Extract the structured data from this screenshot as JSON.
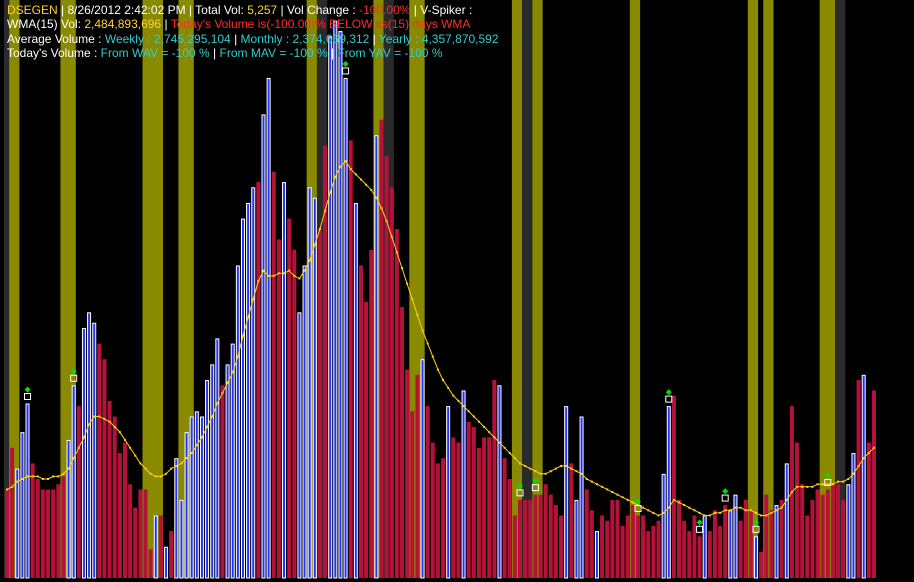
{
  "header": {
    "symbol": "DSEGEN",
    "sep": " | ",
    "datetime": "8/26/2012 2:42:02 PM",
    "total_vol_label": "Total Vol: ",
    "total_vol_value": "5,257",
    "vol_change_label": "Vol Change : ",
    "vol_change_value": "-100.00%",
    "vspiker": "V-Spiker :",
    "wma_label": "WMA(15) Vol: ",
    "wma_value": "2,484,893,696",
    "wma_sep": "  |  ",
    "below_text": "Today's Volume is(-100.00)% BELOW its(15) days WMA",
    "avg_label": "Average Volume :",
    "weekly_label": " Weekly : ",
    "weekly_value": "2,745,295,104",
    "monthly_label": " Monthly : ",
    "monthly_value": "2,374,669,312",
    "yearly_label": " Yearly : ",
    "yearly_value": "4,357,870,592",
    "today_label": "Today's Volume :",
    "from_wav": " From WAV = -100 % ",
    "from_mav": " From MAV = -100 % ",
    "from_yav": " From YAV = -100 % "
  },
  "chart_data": {
    "type": "bar",
    "description_series": "volume bars (blue = up, crimson = down) with yellow weighted moving average line and olive shaded signal bands",
    "colors": {
      "up": "#2233ff",
      "down": "#b5123a",
      "wma": "#ffd21a",
      "band": "#8a8a00",
      "dark_band": "#2a2a2a",
      "marker_green": "#00e000",
      "background": "#000000"
    },
    "ylim": [
      0,
      11000000000
    ],
    "values": [
      1700000000,
      2500000000,
      2100000000,
      2800000000,
      3350000000,
      2200000000,
      1900000000,
      1700000000,
      1700000000,
      1700000000,
      1800000000,
      1950000000,
      2650000000,
      3700000000,
      3300000000,
      4800000000,
      5100000000,
      4900000000,
      4500000000,
      4200000000,
      3400000000,
      3100000000,
      2400000000,
      2600000000,
      1800000000,
      1350000000,
      1700000000,
      1700000000,
      550000000,
      1200000000,
      1200000000,
      600000000,
      900000000,
      2300000000,
      1500000000,
      2800000000,
      3100000000,
      3200000000,
      3100000000,
      3800000000,
      4100000000,
      4600000000,
      3700000000,
      4100000000,
      4500000000,
      6000000000,
      6900000000,
      7200000000,
      7500000000,
      7600000000,
      8900000000,
      9600000000,
      7800000000,
      6500000000,
      7600000000,
      6900000000,
      6300000000,
      5100000000,
      6000000000,
      7500000000,
      7300000000,
      6700000000,
      8300000000,
      10400000000,
      10700000000,
      10500000000,
      9600000000,
      8400000000,
      7200000000,
      6000000000,
      5300000000,
      6300000000,
      8500000000,
      8800000000,
      8100000000,
      7500000000,
      6700000000,
      5200000000,
      4000000000,
      3200000000,
      3900000000,
      4200000000,
      3300000000,
      2600000000,
      2200000000,
      2300000000,
      3300000000,
      2700000000,
      2600000000,
      3600000000,
      3000000000,
      2900000000,
      2500000000,
      2700000000,
      2700000000,
      3800000000,
      3700000000,
      2300000000,
      1900000000,
      1200000000,
      1500000000,
      1500000000,
      1500000000,
      1600000000,
      1600000000,
      1800000000,
      1600000000,
      1400000000,
      1200000000,
      3300000000,
      2200000000,
      1500000000,
      3100000000,
      1700000000,
      1300000000,
      900000000,
      1200000000,
      1100000000,
      1500000000,
      1500000000,
      1000000000,
      1200000000,
      1400000000,
      1200000000,
      1200000000,
      900000000,
      1000000000,
      1100000000,
      2000000000,
      3300000000,
      3500000000,
      1500000000,
      1100000000,
      900000000,
      1200000000,
      800000000,
      1200000000,
      900000000,
      1300000000,
      1000000000,
      1400000000,
      1300000000,
      1600000000,
      1100000000,
      1500000000,
      1300000000,
      800000000,
      500000000,
      1600000000,
      1300000000,
      1400000000,
      1500000000,
      2200000000,
      3300000000,
      2600000000,
      1800000000,
      1200000000,
      1500000000,
      1700000000,
      1600000000,
      1700000000,
      1800000000,
      1800000000,
      1500000000,
      1800000000,
      2400000000,
      3800000000,
      3900000000,
      2600000000,
      3600000000
    ],
    "up": [
      0,
      0,
      1,
      1,
      1,
      0,
      0,
      0,
      0,
      0,
      0,
      0,
      1,
      1,
      0,
      1,
      1,
      1,
      0,
      0,
      0,
      0,
      0,
      0,
      0,
      0,
      0,
      0,
      0,
      1,
      0,
      1,
      0,
      1,
      1,
      1,
      1,
      1,
      1,
      1,
      1,
      1,
      0,
      1,
      1,
      1,
      1,
      1,
      1,
      0,
      1,
      1,
      0,
      0,
      1,
      0,
      0,
      1,
      1,
      1,
      1,
      0,
      0,
      1,
      1,
      1,
      1,
      0,
      1,
      0,
      0,
      0,
      1,
      0,
      0,
      0,
      0,
      0,
      0,
      0,
      0,
      1,
      0,
      0,
      0,
      0,
      1,
      0,
      0,
      1,
      0,
      0,
      0,
      0,
      0,
      0,
      1,
      0,
      0,
      0,
      0,
      0,
      0,
      0,
      0,
      0,
      0,
      0,
      0,
      1,
      0,
      1,
      1,
      0,
      0,
      1,
      0,
      0,
      0,
      0,
      0,
      0,
      0,
      0,
      0,
      0,
      0,
      0,
      1,
      1,
      0,
      0,
      0,
      0,
      0,
      0,
      1,
      0,
      0,
      0,
      0,
      1,
      1,
      0,
      0,
      0,
      1,
      0,
      0,
      0,
      1,
      0,
      1,
      0,
      0,
      0,
      0,
      0,
      0,
      0,
      0,
      0,
      0,
      0,
      1,
      1,
      0,
      1
    ],
    "wma": [
      1700000000,
      1750000000,
      1850000000,
      1900000000,
      1950000000,
      1950000000,
      1950000000,
      1900000000,
      1900000000,
      1950000000,
      1950000000,
      2000000000,
      2100000000,
      2300000000,
      2500000000,
      2700000000,
      2950000000,
      3100000000,
      3100000000,
      3050000000,
      3000000000,
      2900000000,
      2800000000,
      2650000000,
      2500000000,
      2350000000,
      2200000000,
      2100000000,
      2000000000,
      1950000000,
      1950000000,
      2000000000,
      2100000000,
      2150000000,
      2200000000,
      2300000000,
      2400000000,
      2550000000,
      2700000000,
      2900000000,
      3100000000,
      3350000000,
      3550000000,
      3750000000,
      3950000000,
      4250000000,
      4650000000,
      5000000000,
      5350000000,
      5700000000,
      5900000000,
      5800000000,
      5800000000,
      5850000000,
      5850000000,
      5900000000,
      5800000000,
      5750000000,
      5900000000,
      6100000000,
      6400000000,
      6700000000,
      7050000000,
      7400000000,
      7700000000,
      7900000000,
      8000000000,
      7850000000,
      7750000000,
      7650000000,
      7550000000,
      7450000000,
      7300000000,
      7100000000,
      6850000000,
      6550000000,
      6250000000,
      5950000000,
      5650000000,
      5350000000,
      5050000000,
      4750000000,
      4500000000,
      4250000000,
      4000000000,
      3800000000,
      3650000000,
      3500000000,
      3400000000,
      3300000000,
      3200000000,
      3100000000,
      3000000000,
      2900000000,
      2800000000,
      2700000000,
      2600000000,
      2500000000,
      2400000000,
      2300000000,
      2200000000,
      2150000000,
      2100000000,
      2050000000,
      2000000000,
      2000000000,
      2050000000,
      2100000000,
      2150000000,
      2150000000,
      2100000000,
      2050000000,
      2000000000,
      1900000000,
      1850000000,
      1800000000,
      1750000000,
      1700000000,
      1650000000,
      1600000000,
      1550000000,
      1500000000,
      1450000000,
      1400000000,
      1350000000,
      1300000000,
      1250000000,
      1200000000,
      1250000000,
      1350000000,
      1500000000,
      1450000000,
      1400000000,
      1350000000,
      1300000000,
      1250000000,
      1200000000,
      1200000000,
      1250000000,
      1250000000,
      1300000000,
      1300000000,
      1350000000,
      1350000000,
      1300000000,
      1300000000,
      1250000000,
      1200000000,
      1200000000,
      1250000000,
      1300000000,
      1350000000,
      1500000000,
      1650000000,
      1750000000,
      1750000000,
      1750000000,
      1750000000,
      1800000000,
      1800000000,
      1800000000,
      1800000000,
      1850000000,
      1850000000,
      1900000000,
      2000000000,
      2150000000,
      2300000000,
      2400000000,
      2500000000
    ]
  },
  "bands": [
    {
      "from": 0,
      "to": 1,
      "color": "dark_band"
    },
    {
      "from": 1,
      "to": 3,
      "color": "band"
    },
    {
      "from": 11,
      "to": 14,
      "color": "band"
    },
    {
      "from": 27,
      "to": 31,
      "color": "band"
    },
    {
      "from": 34,
      "to": 37,
      "color": "band"
    },
    {
      "from": 59,
      "to": 61,
      "color": "band"
    },
    {
      "from": 61,
      "to": 63,
      "color": "dark_band"
    },
    {
      "from": 72,
      "to": 74,
      "color": "band"
    },
    {
      "from": 74,
      "to": 76,
      "color": "dark_band"
    },
    {
      "from": 79,
      "to": 82,
      "color": "band"
    },
    {
      "from": 99,
      "to": 101,
      "color": "band"
    },
    {
      "from": 101,
      "to": 103,
      "color": "dark_band"
    },
    {
      "from": 103,
      "to": 105,
      "color": "band"
    },
    {
      "from": 122,
      "to": 124,
      "color": "band"
    },
    {
      "from": 145,
      "to": 147,
      "color": "band"
    },
    {
      "from": 148,
      "to": 150,
      "color": "band"
    },
    {
      "from": 159,
      "to": 162,
      "color": "band"
    },
    {
      "from": 162,
      "to": 164,
      "color": "dark_band"
    }
  ],
  "markers": [
    4,
    13,
    66,
    100,
    103,
    123,
    129,
    135,
    140,
    146,
    160
  ]
}
